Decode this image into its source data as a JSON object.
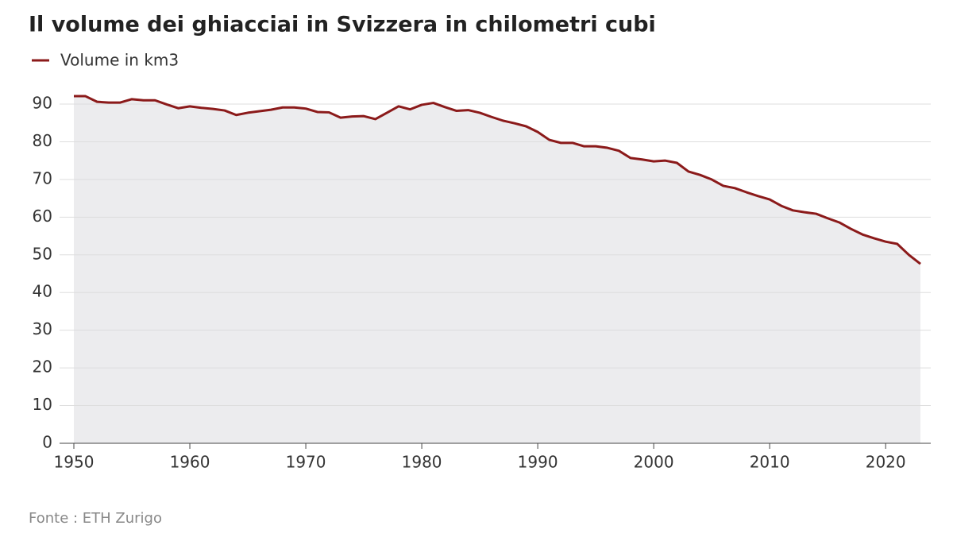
{
  "chart_data": {
    "type": "area-line",
    "title": "Il volume dei ghiacciai in Svizzera in chilometri cubi",
    "source": "Fonte : ETH Zurigo",
    "x": [
      1950,
      1951,
      1952,
      1953,
      1954,
      1955,
      1956,
      1957,
      1958,
      1959,
      1960,
      1961,
      1962,
      1963,
      1964,
      1965,
      1966,
      1967,
      1968,
      1969,
      1970,
      1971,
      1972,
      1973,
      1974,
      1975,
      1976,
      1977,
      1978,
      1979,
      1980,
      1981,
      1982,
      1983,
      1984,
      1985,
      1986,
      1987,
      1988,
      1989,
      1990,
      1991,
      1992,
      1993,
      1994,
      1995,
      1996,
      1997,
      1998,
      1999,
      2000,
      2001,
      2002,
      2003,
      2004,
      2005,
      2006,
      2007,
      2008,
      2009,
      2010,
      2011,
      2012,
      2013,
      2014,
      2015,
      2016,
      2017,
      2018,
      2019,
      2020,
      2021,
      2022,
      2023
    ],
    "series": [
      {
        "name": "Volume in km3",
        "color": "#8b1a1a",
        "fill": "#ececee",
        "values": [
          92.1,
          92.1,
          90.6,
          90.4,
          90.4,
          91.3,
          91.0,
          91.0,
          89.9,
          88.9,
          89.4,
          89.0,
          88.7,
          88.3,
          87.1,
          87.7,
          88.1,
          88.5,
          89.1,
          89.1,
          88.8,
          87.9,
          87.8,
          86.4,
          86.7,
          86.8,
          86.0,
          87.7,
          89.4,
          88.6,
          89.8,
          90.3,
          89.2,
          88.2,
          88.4,
          87.7,
          86.6,
          85.6,
          84.9,
          84.1,
          82.6,
          80.5,
          79.7,
          79.7,
          78.8,
          78.8,
          78.4,
          77.6,
          75.7,
          75.3,
          74.8,
          75.0,
          74.4,
          72.1,
          71.2,
          70.0,
          68.3,
          67.7,
          66.6,
          65.6,
          64.7,
          63.0,
          61.8,
          61.3,
          60.9,
          59.7,
          58.6,
          56.9,
          55.4,
          54.4,
          53.5,
          52.9,
          50.0,
          47.6
        ]
      }
    ],
    "xlim": [
      1950,
      2023
    ],
    "xticks": [
      1950,
      1960,
      1970,
      1980,
      1990,
      2000,
      2010,
      2020
    ],
    "ylim": [
      0,
      90
    ],
    "yticks": [
      0,
      10,
      20,
      30,
      40,
      50,
      60,
      70,
      80,
      90
    ],
    "grid": true
  }
}
